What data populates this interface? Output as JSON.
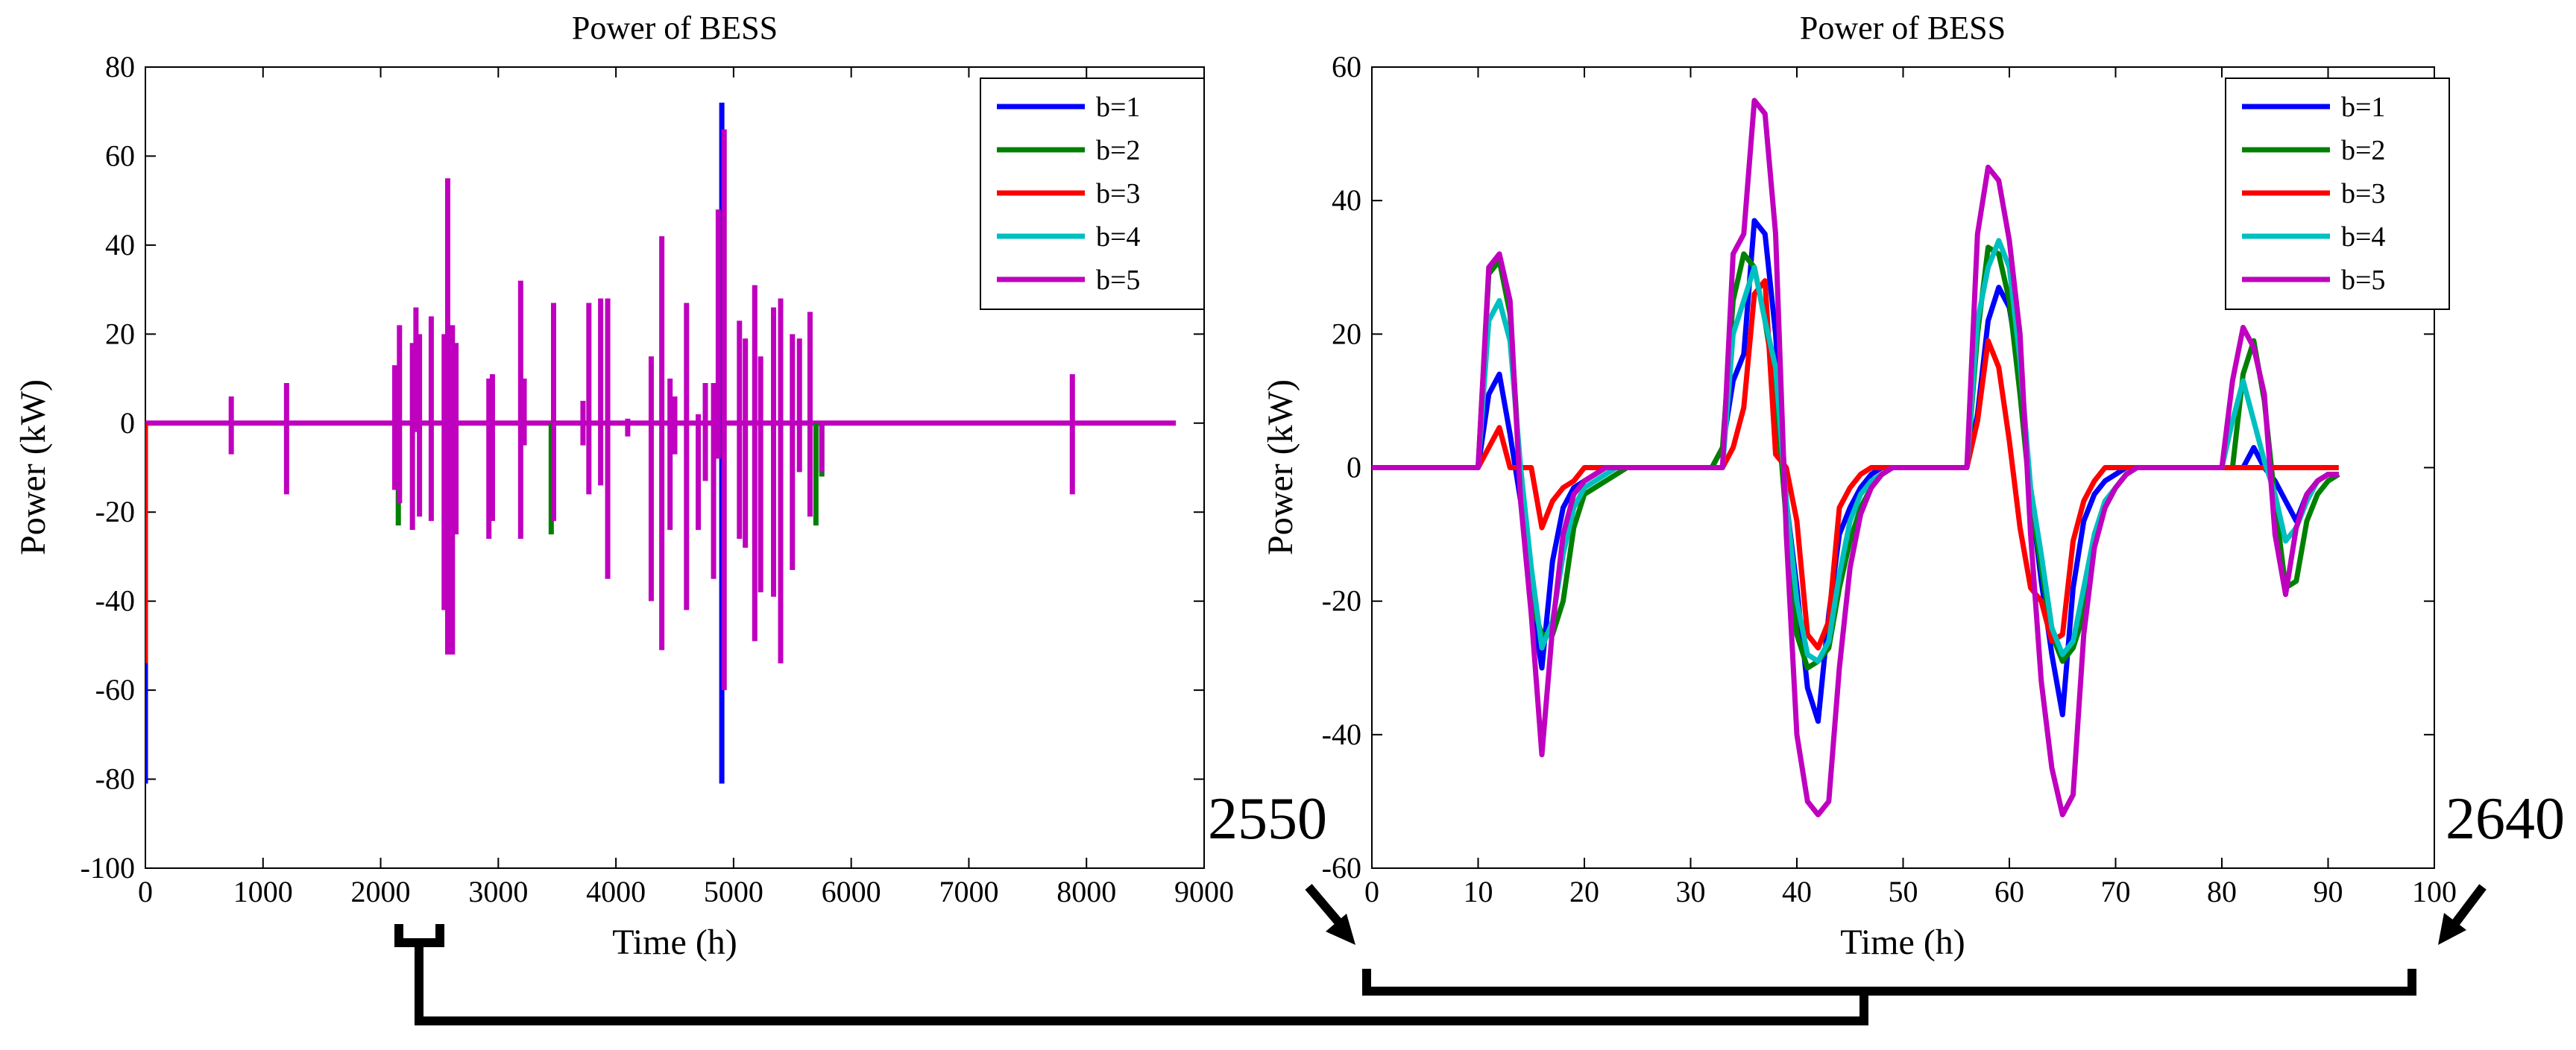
{
  "chart_data": [
    {
      "type": "line",
      "title": "Power of BESS",
      "xlabel": "Time (h)",
      "ylabel": "Power (kW)",
      "xlim": [
        0,
        9000
      ],
      "ylim": [
        -100,
        80
      ],
      "xticks": [
        0,
        1000,
        2000,
        3000,
        4000,
        5000,
        6000,
        7000,
        8000,
        9000
      ],
      "yticks": [
        80,
        60,
        40,
        20,
        0,
        -20,
        -40,
        -60,
        -80,
        -100
      ],
      "legend": [
        "b=1",
        "b=2",
        "b=3",
        "b=4",
        "b=5"
      ],
      "legend_position": "top-right",
      "series_colors": [
        "#0000ff",
        "#008000",
        "#ff0000",
        "#00bfbf",
        "#bf00bf"
      ],
      "series": [
        {
          "name": "b=1",
          "color": "#0000ff",
          "spikes": [
            [
              4900,
              -81,
              72
            ],
            [
              0,
              -81,
              0
            ]
          ]
        },
        {
          "name": "b=2",
          "color": "#008000",
          "spikes": [
            [
              2150,
              -23,
              0
            ],
            [
              3450,
              -25,
              0
            ],
            [
              5700,
              -23,
              0
            ],
            [
              5750,
              -12,
              0
            ]
          ]
        },
        {
          "name": "b=3",
          "color": "#ff0000",
          "spikes": [
            [
              0,
              -54,
              0
            ]
          ]
        },
        {
          "name": "b=4",
          "color": "#00bfbf",
          "spikes": []
        },
        {
          "name": "b=5",
          "color": "#bf00bf",
          "spikes": [
            [
              730,
              -7,
              6
            ],
            [
              1200,
              -16,
              9
            ],
            [
              2120,
              -15,
              13
            ],
            [
              2160,
              -18,
              22
            ],
            [
              2270,
              -24,
              18
            ],
            [
              2300,
              -2,
              26
            ],
            [
              2330,
              -21,
              20
            ],
            [
              2430,
              -22,
              24
            ],
            [
              2540,
              -42,
              20
            ],
            [
              2570,
              -52,
              55
            ],
            [
              2610,
              -52,
              22
            ],
            [
              2640,
              -25,
              18
            ],
            [
              2920,
              -26,
              10
            ],
            [
              2950,
              -22,
              11
            ],
            [
              3190,
              -26,
              32
            ],
            [
              3220,
              -5,
              10
            ],
            [
              3470,
              -22,
              27
            ],
            [
              3720,
              -5,
              5
            ],
            [
              3770,
              -16,
              27
            ],
            [
              3870,
              -14,
              28
            ],
            [
              3930,
              -35,
              28
            ],
            [
              4100,
              -3,
              1
            ],
            [
              4300,
              -40,
              15
            ],
            [
              4390,
              -51,
              42
            ],
            [
              4460,
              -24,
              10
            ],
            [
              4500,
              -7,
              6
            ],
            [
              4600,
              -42,
              27
            ],
            [
              4700,
              -24,
              2
            ],
            [
              4760,
              -13,
              9
            ],
            [
              4830,
              -35,
              9
            ],
            [
              4870,
              -8,
              48
            ],
            [
              4920,
              -60,
              66
            ],
            [
              5050,
              -26,
              23
            ],
            [
              5100,
              -28,
              19
            ],
            [
              5180,
              -49,
              31
            ],
            [
              5230,
              -38,
              15
            ],
            [
              5340,
              -39,
              26
            ],
            [
              5400,
              -54,
              28
            ],
            [
              5500,
              -33,
              20
            ],
            [
              5560,
              -11,
              19
            ],
            [
              5650,
              -21,
              25
            ],
            [
              5750,
              -11,
              0
            ],
            [
              7880,
              -16,
              11
            ]
          ]
        }
      ]
    },
    {
      "type": "line",
      "title": "Power of BESS",
      "xlabel": "Time (h)",
      "ylabel": "Power (kW)",
      "xlim": [
        0,
        100
      ],
      "ylim": [
        -60,
        60
      ],
      "xticks": [
        0,
        10,
        20,
        30,
        40,
        50,
        60,
        70,
        80,
        90,
        100
      ],
      "yticks": [
        60,
        40,
        20,
        0,
        -20,
        -40,
        -60
      ],
      "legend": [
        "b=1",
        "b=2",
        "b=3",
        "b=4",
        "b=5"
      ],
      "legend_position": "top-right",
      "x": [
        0,
        1,
        2,
        3,
        4,
        5,
        6,
        7,
        8,
        9,
        10,
        11,
        12,
        13,
        14,
        15,
        16,
        17,
        18,
        19,
        20,
        21,
        22,
        23,
        24,
        25,
        26,
        27,
        28,
        29,
        30,
        31,
        32,
        33,
        34,
        35,
        36,
        37,
        38,
        39,
        40,
        41,
        42,
        43,
        44,
        45,
        46,
        47,
        48,
        49,
        50,
        51,
        52,
        53,
        54,
        55,
        56,
        57,
        58,
        59,
        60,
        61,
        62,
        63,
        64,
        65,
        66,
        67,
        68,
        69,
        70,
        71,
        72,
        73,
        74,
        75,
        76,
        77,
        78,
        79,
        80,
        81,
        82,
        83,
        84,
        85,
        86,
        87,
        88,
        89,
        90,
        91
      ],
      "series": [
        {
          "name": "b=1",
          "color": "#0000ff",
          "values": [
            0,
            0,
            0,
            0,
            0,
            0,
            0,
            0,
            0,
            0,
            0,
            11,
            14,
            5,
            -5,
            -20,
            -30,
            -14,
            -6,
            -3,
            -2,
            -1,
            0,
            0,
            0,
            0,
            0,
            0,
            0,
            0,
            0,
            0,
            0,
            3,
            13,
            17,
            37,
            35,
            20,
            -5,
            -18,
            -33,
            -38,
            -22,
            -10,
            -6,
            -3,
            -1,
            0,
            0,
            0,
            0,
            0,
            0,
            0,
            0,
            0,
            8,
            22,
            27,
            24,
            14,
            -4,
            -17,
            -28,
            -37,
            -18,
            -8,
            -4,
            -2,
            -1,
            0,
            0,
            0,
            0,
            0,
            0,
            0,
            0,
            0,
            0,
            0,
            0,
            3,
            0,
            -2,
            -5,
            -8,
            -4,
            -2,
            -1,
            -1
          ]
        },
        {
          "name": "b=2",
          "color": "#008000",
          "values": [
            0,
            0,
            0,
            0,
            0,
            0,
            0,
            0,
            0,
            0,
            0,
            29,
            31,
            23,
            -2,
            -20,
            -25,
            -25,
            -20,
            -9,
            -4,
            -3,
            -2,
            -1,
            0,
            0,
            0,
            0,
            0,
            0,
            0,
            0,
            0,
            3,
            25,
            32,
            30,
            22,
            12,
            -8,
            -25,
            -30,
            -29,
            -27,
            -18,
            -11,
            -6,
            -3,
            -1,
            0,
            0,
            0,
            0,
            0,
            0,
            0,
            0,
            20,
            33,
            32,
            25,
            11,
            -5,
            -15,
            -25,
            -29,
            -27,
            -22,
            -10,
            -6,
            -3,
            -1,
            0,
            0,
            0,
            0,
            0,
            0,
            0,
            0,
            0,
            0,
            14,
            19,
            10,
            -5,
            -18,
            -17,
            -8,
            -4,
            -2,
            -1
          ]
        },
        {
          "name": "b=3",
          "color": "#ff0000",
          "values": [
            0,
            0,
            0,
            0,
            0,
            0,
            0,
            0,
            0,
            0,
            0,
            3,
            6,
            0,
            0,
            0,
            -9,
            -5,
            -3,
            -2,
            0,
            0,
            0,
            0,
            0,
            0,
            0,
            0,
            0,
            0,
            0,
            0,
            0,
            0,
            3,
            9,
            26,
            28,
            2,
            0,
            -8,
            -25,
            -27,
            -23,
            -6,
            -3,
            -1,
            0,
            0,
            0,
            0,
            0,
            0,
            0,
            0,
            0,
            0,
            7,
            19,
            15,
            4,
            -9,
            -18,
            -20,
            -26,
            -25,
            -11,
            -5,
            -2,
            0,
            0,
            0,
            0,
            0,
            0,
            0,
            0,
            0,
            0,
            0,
            0,
            0,
            0,
            0,
            0,
            0,
            0,
            0,
            0,
            0,
            0,
            0
          ]
        },
        {
          "name": "b=4",
          "color": "#00bfbf",
          "values": [
            0,
            0,
            0,
            0,
            0,
            0,
            0,
            0,
            0,
            0,
            0,
            22,
            25,
            19,
            0,
            -15,
            -27,
            -23,
            -13,
            -6,
            -3,
            -2,
            -1,
            0,
            0,
            0,
            0,
            0,
            0,
            0,
            0,
            0,
            0,
            0,
            20,
            25,
            30,
            22,
            15,
            -5,
            -20,
            -28,
            -29,
            -26,
            -16,
            -8,
            -4,
            -2,
            -1,
            0,
            0,
            0,
            0,
            0,
            0,
            0,
            0,
            22,
            30,
            34,
            30,
            16,
            -3,
            -13,
            -24,
            -28,
            -26,
            -18,
            -10,
            -5,
            -3,
            -1,
            0,
            0,
            0,
            0,
            0,
            0,
            0,
            0,
            0,
            7,
            13,
            7,
            1,
            -4,
            -11,
            -9,
            -5,
            -2,
            -1,
            -1
          ]
        },
        {
          "name": "b=5",
          "color": "#bf00bf",
          "values": [
            0,
            0,
            0,
            0,
            0,
            0,
            0,
            0,
            0,
            0,
            0,
            30,
            32,
            25,
            -5,
            -22,
            -43,
            -24,
            -10,
            -4,
            -2,
            -1,
            0,
            0,
            0,
            0,
            0,
            0,
            0,
            0,
            0,
            0,
            0,
            0,
            32,
            35,
            55,
            53,
            35,
            -10,
            -40,
            -50,
            -52,
            -50,
            -30,
            -15,
            -7,
            -3,
            -1,
            0,
            0,
            0,
            0,
            0,
            0,
            0,
            0,
            35,
            45,
            43,
            34,
            20,
            -10,
            -32,
            -45,
            -52,
            -49,
            -25,
            -12,
            -6,
            -3,
            -1,
            0,
            0,
            0,
            0,
            0,
            0,
            0,
            0,
            0,
            13,
            21,
            18,
            11,
            -10,
            -19,
            -9,
            -4,
            -2,
            -1,
            -1
          ]
        }
      ]
    }
  ],
  "annotations": {
    "left_label": "2550",
    "right_label": "2640"
  }
}
